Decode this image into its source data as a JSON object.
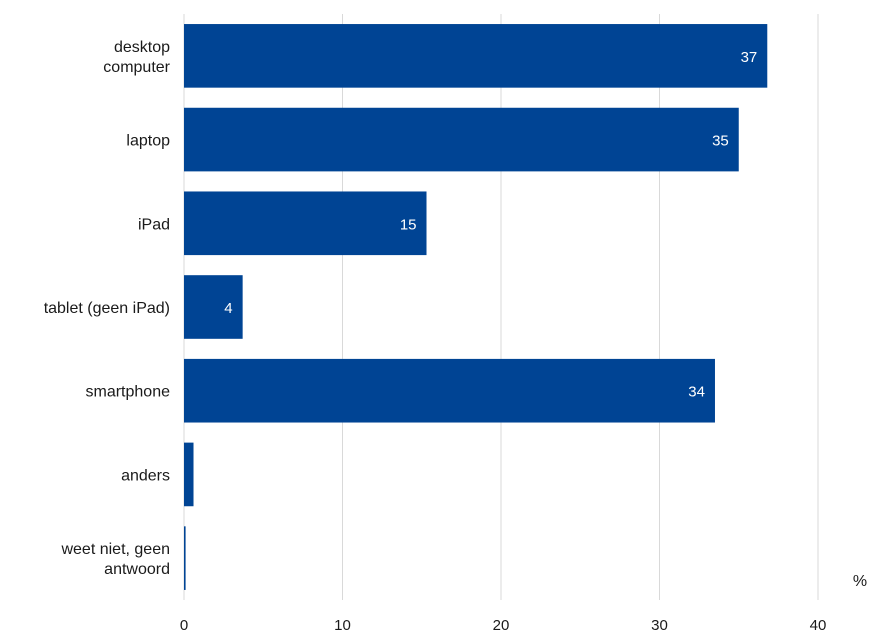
{
  "chart_data": {
    "type": "bar",
    "orientation": "horizontal",
    "categories": [
      [
        "desktop",
        "computer"
      ],
      [
        "laptop"
      ],
      [
        "iPad"
      ],
      [
        "tablet (geen iPad)"
      ],
      [
        "smartphone"
      ],
      [
        "anders"
      ],
      [
        "weet niet, geen",
        "antwoord"
      ]
    ],
    "values": [
      36.8,
      35.0,
      15.3,
      3.7,
      33.5,
      0.6,
      0.1
    ],
    "data_labels": [
      "37",
      "35",
      "15",
      "4",
      "34",
      "",
      ""
    ],
    "xlim": [
      0,
      40
    ],
    "x_ticks": [
      "0",
      "10",
      "20",
      "30",
      "40"
    ],
    "x_tick_values": [
      0,
      10,
      20,
      30,
      40
    ],
    "unit_label": "%",
    "bar_color": "#004494",
    "grid": true,
    "legend": "none"
  }
}
